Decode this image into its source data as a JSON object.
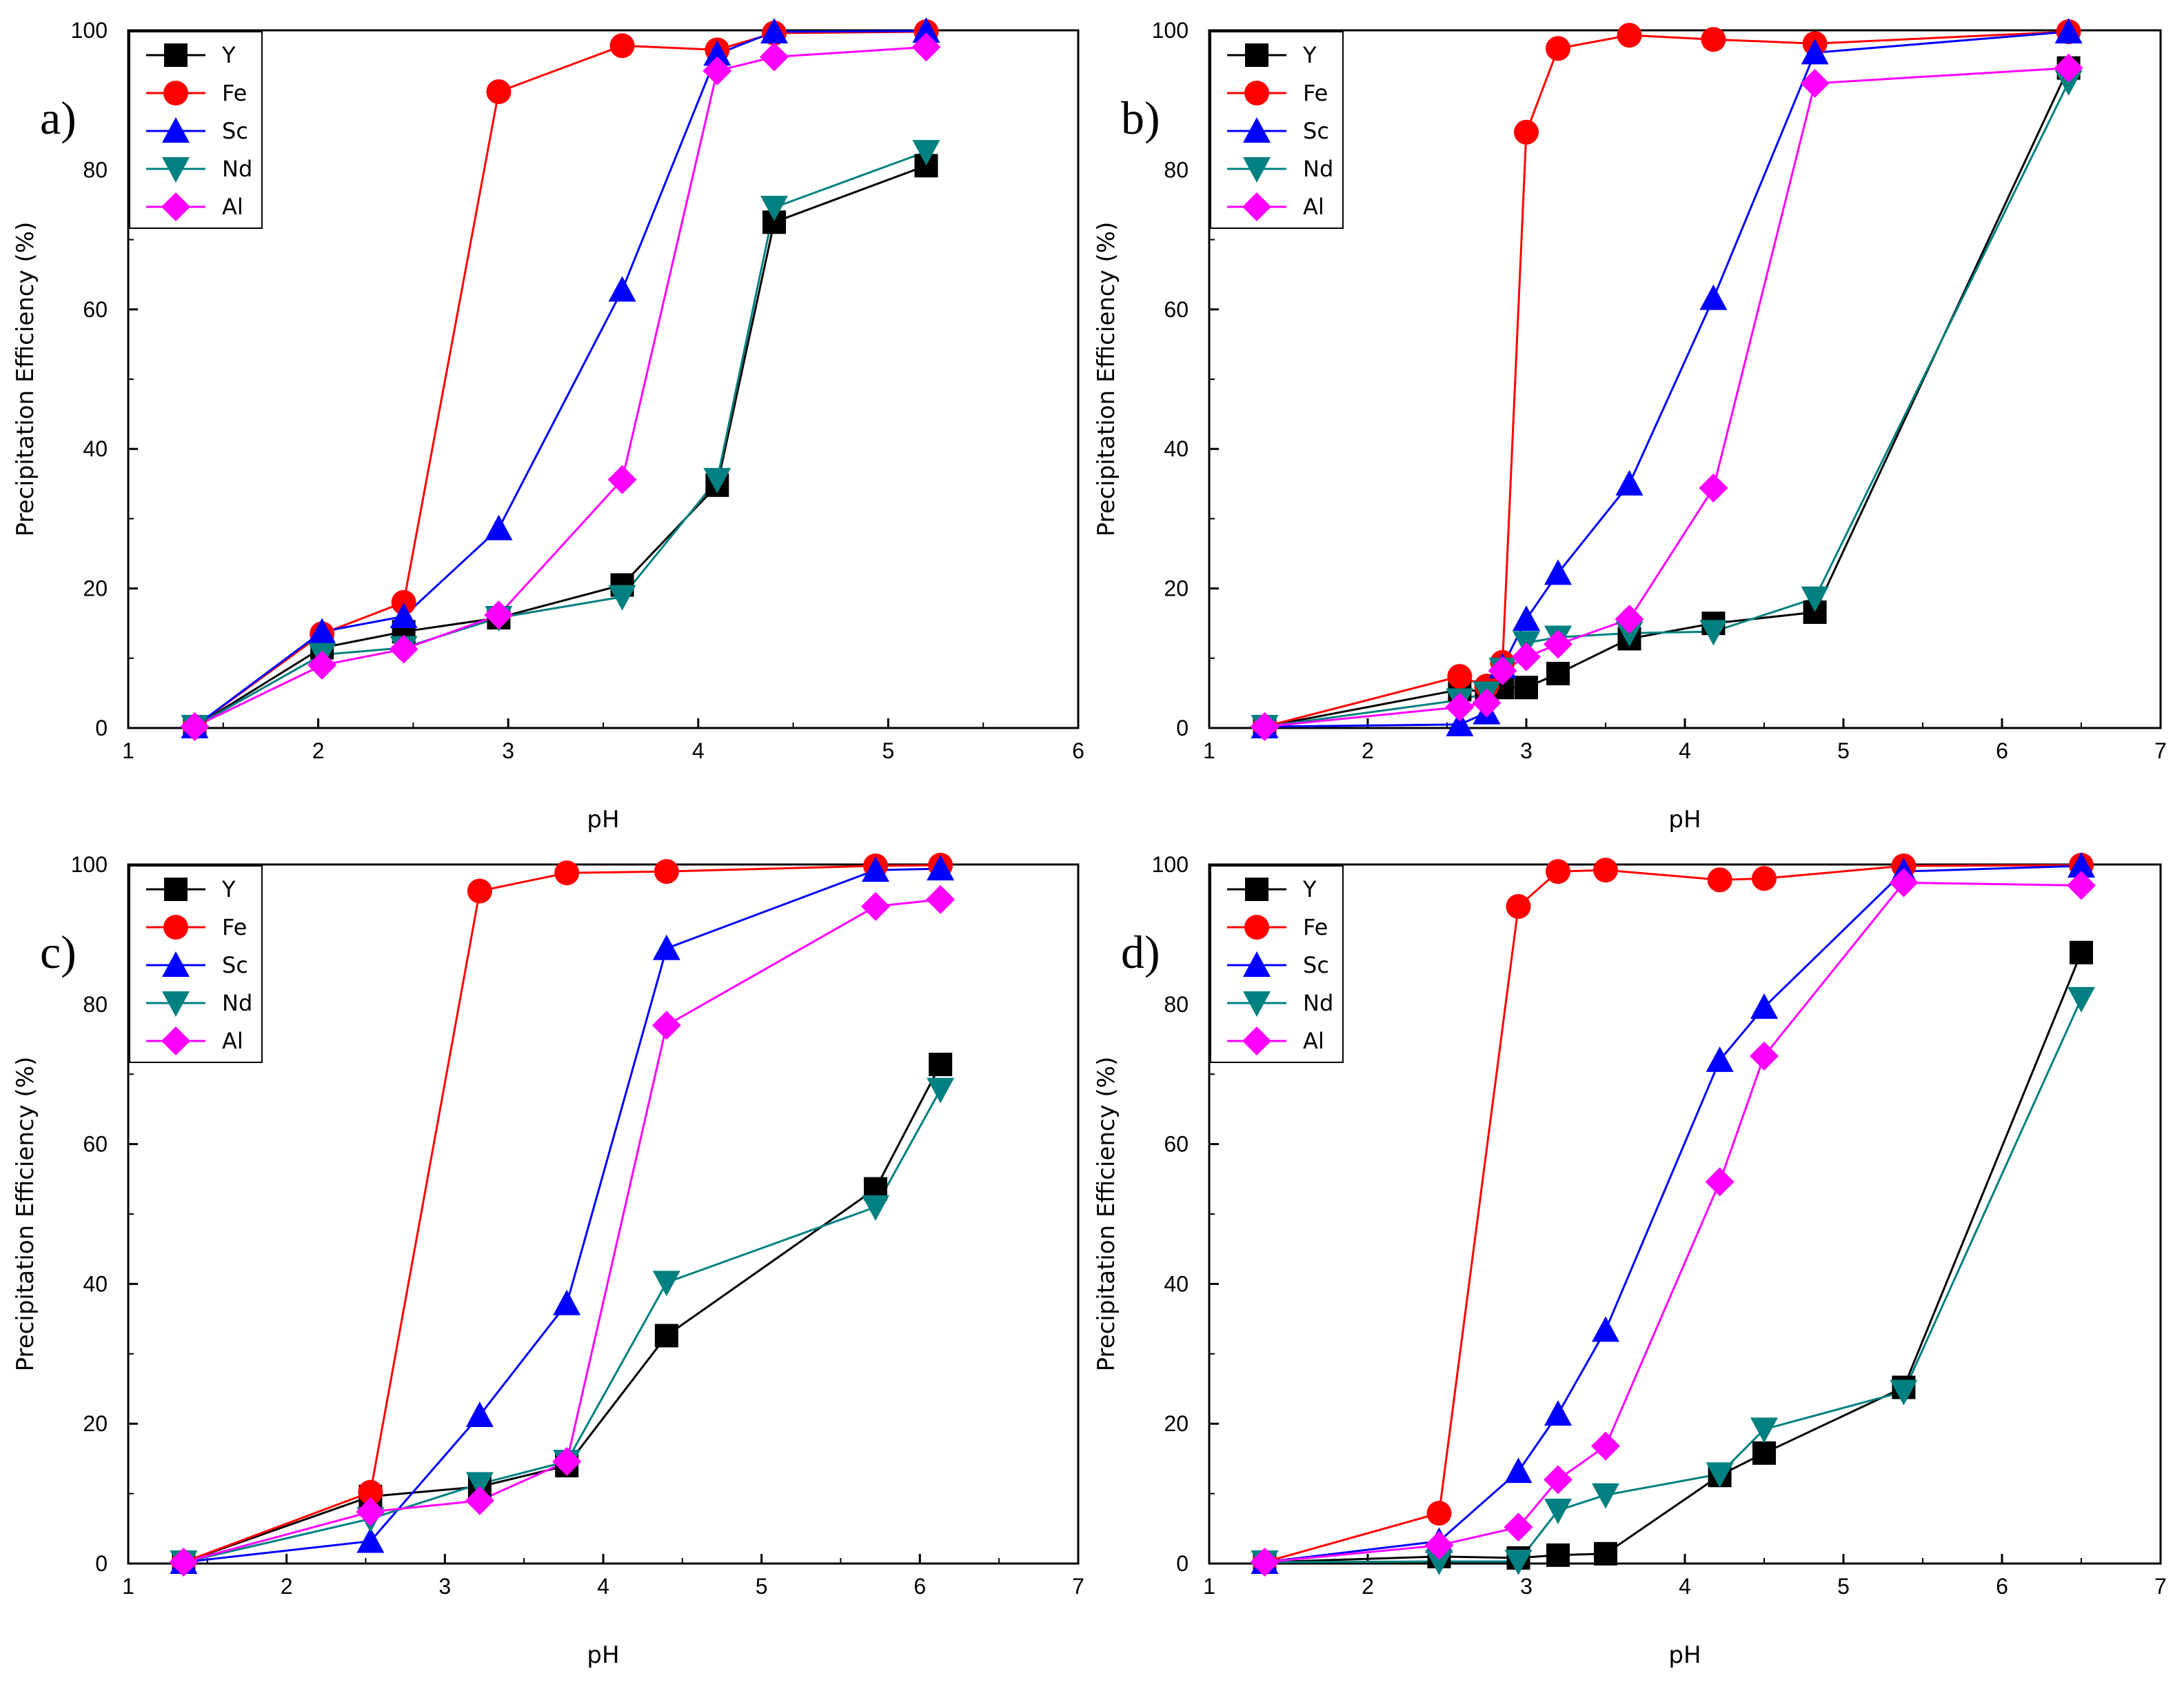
{
  "figure": {
    "series_styles": [
      {
        "name": "Y",
        "color": "#000000",
        "marker": "square"
      },
      {
        "name": "Fe",
        "color": "#ff0000",
        "marker": "circle"
      },
      {
        "name": "Sc",
        "color": "#0000ff",
        "marker": "triangle-up"
      },
      {
        "name": "Nd",
        "color": "#008080",
        "marker": "triangle-down"
      },
      {
        "name": "Al",
        "color": "#ff00ff",
        "marker": "diamond"
      }
    ]
  },
  "chart_data": [
    {
      "type": "line",
      "panel_label": "a)",
      "xlabel": "pH",
      "ylabel": "Precipitation Efficiency (%)",
      "xlim": [
        1,
        6
      ],
      "ylim": [
        0,
        100
      ],
      "xticks": [
        "1",
        "2",
        "3",
        "4",
        "5",
        "6"
      ],
      "yticks": [
        "0",
        "20",
        "40",
        "60",
        "80",
        "100"
      ],
      "legend_position": "top-left",
      "series": [
        {
          "name": "Y",
          "x": [
            1.35,
            2.02,
            2.45,
            2.95,
            3.6,
            4.1,
            4.4,
            5.2
          ],
          "y": [
            0.2,
            11.5,
            13.8,
            15.8,
            20.5,
            34.8,
            72.5,
            80.6
          ]
        },
        {
          "name": "Fe",
          "x": [
            1.35,
            2.02,
            2.45,
            2.95,
            3.6,
            4.1,
            4.4,
            5.2
          ],
          "y": [
            0.2,
            13.5,
            18.0,
            91.2,
            97.8,
            97.2,
            99.6,
            99.8
          ]
        },
        {
          "name": "Sc",
          "x": [
            1.35,
            2.02,
            2.45,
            2.95,
            3.6,
            4.1,
            4.4,
            5.2
          ],
          "y": [
            0.2,
            13.8,
            16.0,
            28.6,
            62.8,
            96.6,
            99.8,
            99.9
          ]
        },
        {
          "name": "Nd",
          "x": [
            1.35,
            2.02,
            2.45,
            2.95,
            3.6,
            4.1,
            4.4,
            5.2
          ],
          "y": [
            0.2,
            10.5,
            11.5,
            15.8,
            18.8,
            35.6,
            74.6,
            82.6
          ]
        },
        {
          "name": "Al",
          "x": [
            1.35,
            2.02,
            2.45,
            2.95,
            3.6,
            4.1,
            4.4,
            5.2
          ],
          "y": [
            0.2,
            9.0,
            11.3,
            16.2,
            35.6,
            94.2,
            96.2,
            97.6
          ]
        }
      ]
    },
    {
      "type": "line",
      "panel_label": "b)",
      "xlabel": "pH",
      "ylabel": "Precipitation Efficiency (%)",
      "xlim": [
        1,
        7
      ],
      "ylim": [
        0,
        100
      ],
      "xticks": [
        "1",
        "2",
        "3",
        "4",
        "5",
        "6",
        "7"
      ],
      "yticks": [
        "0",
        "20",
        "40",
        "60",
        "80",
        "100"
      ],
      "legend_position": "top-left",
      "series": [
        {
          "name": "Y",
          "x": [
            1.35,
            2.58,
            2.75,
            2.85,
            3.0,
            3.2,
            3.65,
            4.18,
            4.82,
            6.42
          ],
          "y": [
            0.2,
            5.5,
            5.2,
            5.8,
            5.8,
            7.8,
            12.8,
            15.0,
            16.6,
            94.6
          ]
        },
        {
          "name": "Fe",
          "x": [
            1.35,
            2.58,
            2.75,
            2.85,
            3.0,
            3.2,
            3.65,
            4.18,
            4.82,
            6.42
          ],
          "y": [
            0.2,
            7.4,
            6.0,
            9.4,
            85.4,
            97.4,
            99.3,
            98.7,
            98.1,
            99.8
          ]
        },
        {
          "name": "Sc",
          "x": [
            1.35,
            2.58,
            2.75,
            2.85,
            3.0,
            3.2,
            3.65,
            4.18,
            4.82,
            6.42
          ],
          "y": [
            0.2,
            0.5,
            2.2,
            8.8,
            15.6,
            22.2,
            35.0,
            61.6,
            96.8,
            99.8
          ]
        },
        {
          "name": "Nd",
          "x": [
            1.35,
            2.58,
            2.75,
            2.85,
            3.0,
            3.2,
            3.65,
            4.18,
            4.82,
            6.42
          ],
          "y": [
            0.2,
            4.0,
            5.0,
            8.4,
            12.2,
            13.0,
            13.6,
            13.8,
            18.6,
            92.6
          ]
        },
        {
          "name": "Al",
          "x": [
            1.35,
            2.58,
            2.75,
            2.85,
            3.0,
            3.2,
            3.65,
            4.18,
            4.82,
            6.42
          ],
          "y": [
            0.2,
            3.0,
            3.6,
            8.2,
            10.2,
            12.0,
            15.6,
            34.4,
            92.4,
            94.6
          ]
        }
      ]
    },
    {
      "type": "line",
      "panel_label": "c)",
      "xlabel": "pH",
      "ylabel": "Precipitation Efficiency (%)",
      "xlim": [
        1,
        7
      ],
      "ylim": [
        0,
        100
      ],
      "xticks": [
        "1",
        "2",
        "3",
        "4",
        "5",
        "6",
        "7"
      ],
      "yticks": [
        "0",
        "20",
        "40",
        "60",
        "80",
        "100"
      ],
      "legend_position": "top-left",
      "series": [
        {
          "name": "Y",
          "x": [
            1.35,
            2.53,
            3.22,
            3.77,
            4.4,
            5.72,
            6.13
          ],
          "y": [
            0.2,
            9.6,
            11.0,
            14.0,
            32.6,
            53.6,
            71.4
          ]
        },
        {
          "name": "Fe",
          "x": [
            1.35,
            2.53,
            3.22,
            3.77,
            4.4,
            5.72,
            6.13
          ],
          "y": [
            0.2,
            10.2,
            96.2,
            98.8,
            99.0,
            99.8,
            99.9
          ]
        },
        {
          "name": "Sc",
          "x": [
            1.35,
            2.53,
            3.22,
            3.77,
            4.4,
            5.72,
            6.13
          ],
          "y": [
            0.2,
            3.2,
            21.2,
            37.2,
            88.0,
            99.2,
            99.4
          ]
        },
        {
          "name": "Nd",
          "x": [
            1.35,
            2.53,
            3.22,
            3.77,
            4.4,
            5.72,
            6.13
          ],
          "y": [
            0.2,
            6.4,
            11.4,
            14.6,
            40.2,
            51.0,
            67.8
          ]
        },
        {
          "name": "Al",
          "x": [
            1.35,
            2.53,
            3.22,
            3.77,
            4.4,
            5.72,
            6.13
          ],
          "y": [
            0.2,
            7.4,
            9.0,
            14.6,
            77.0,
            94.0,
            95.0
          ]
        }
      ]
    },
    {
      "type": "line",
      "panel_label": "d)",
      "xlabel": "pH",
      "ylabel": "Precipitation Efficiency (%)",
      "xlim": [
        1,
        7
      ],
      "ylim": [
        0,
        100
      ],
      "xticks": [
        "1",
        "2",
        "3",
        "4",
        "5",
        "6",
        "7"
      ],
      "yticks": [
        "0",
        "20",
        "40",
        "60",
        "80",
        "100"
      ],
      "legend_position": "top-left",
      "series": [
        {
          "name": "Y",
          "x": [
            1.35,
            2.45,
            2.95,
            3.2,
            3.5,
            4.22,
            4.5,
            5.38,
            6.5
          ],
          "y": [
            0.2,
            1.0,
            0.8,
            1.2,
            1.4,
            12.6,
            15.8,
            25.2,
            87.4
          ]
        },
        {
          "name": "Fe",
          "x": [
            1.35,
            2.45,
            2.95,
            3.2,
            3.5,
            4.22,
            4.5,
            5.38,
            6.5
          ],
          "y": [
            0.2,
            7.2,
            94.0,
            99.0,
            99.2,
            97.8,
            98.0,
            99.8,
            99.9
          ]
        },
        {
          "name": "Sc",
          "x": [
            1.35,
            2.45,
            2.95,
            3.2,
            3.5,
            4.22,
            4.5,
            5.38,
            6.5
          ],
          "y": [
            0.2,
            3.2,
            13.2,
            21.4,
            33.4,
            72.0,
            79.6,
            99.0,
            99.8
          ]
        },
        {
          "name": "Nd",
          "x": [
            1.35,
            2.45,
            2.95,
            3.2,
            3.5,
            4.22,
            4.5,
            5.38,
            6.5
          ],
          "y": [
            0.2,
            0.3,
            0.3,
            7.6,
            9.8,
            12.8,
            19.2,
            24.6,
            80.8
          ]
        },
        {
          "name": "Al",
          "x": [
            1.35,
            2.45,
            2.95,
            3.2,
            3.5,
            4.22,
            4.5,
            5.38,
            6.5
          ],
          "y": [
            0.2,
            2.6,
            5.2,
            12.0,
            16.8,
            54.6,
            72.6,
            97.4,
            97.0
          ]
        }
      ]
    }
  ]
}
